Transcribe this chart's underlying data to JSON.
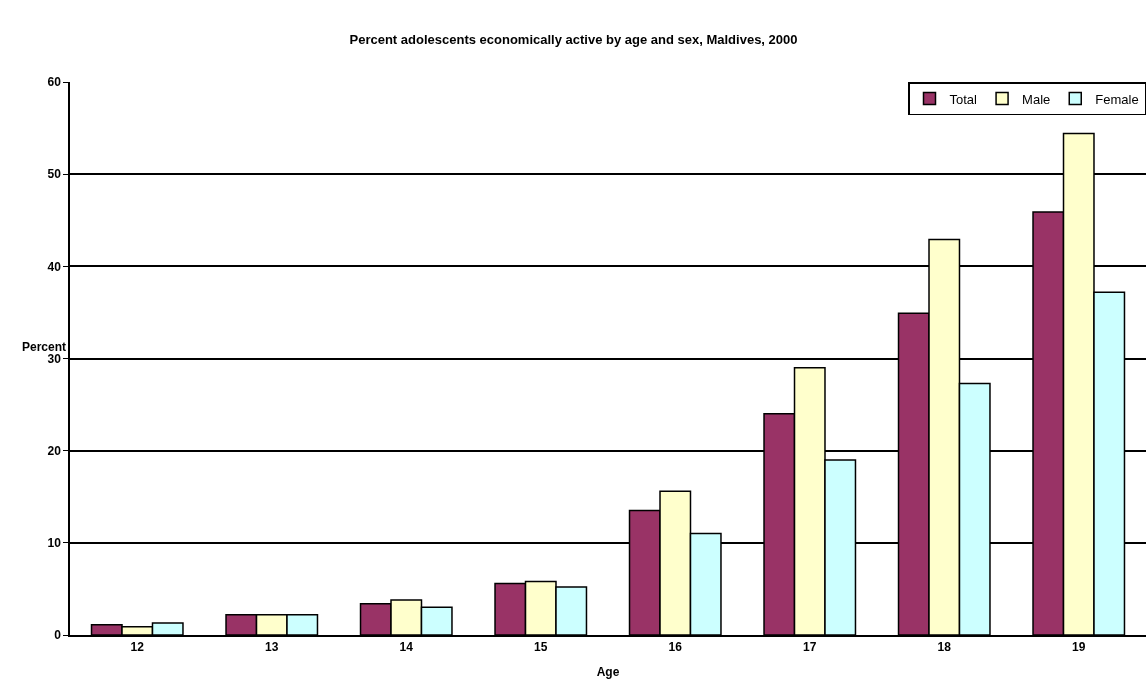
{
  "chart_data": {
    "type": "bar",
    "title": "Percent adolescents economically active by age and sex, Maldives, 2000",
    "xlabel": "Age",
    "ylabel": "Percent",
    "categories": [
      "12",
      "13",
      "14",
      "15",
      "16",
      "17",
      "18",
      "19"
    ],
    "series": [
      {
        "name": "Total",
        "color": "#993366",
        "values": [
          1.1,
          2.2,
          3.4,
          5.6,
          13.5,
          24.0,
          34.9,
          45.9
        ]
      },
      {
        "name": "Male",
        "color": "#ffffcc",
        "values": [
          0.9,
          2.2,
          3.8,
          5.8,
          15.6,
          29.0,
          42.9,
          54.4
        ]
      },
      {
        "name": "Female",
        "color": "#ccffff",
        "values": [
          1.3,
          2.2,
          3.0,
          5.2,
          11.0,
          19.0,
          27.3,
          37.2
        ]
      }
    ],
    "ylim": [
      0,
      60
    ],
    "yticks": [
      0,
      10,
      20,
      30,
      40,
      50,
      60
    ],
    "grid": "y",
    "legend": "top right"
  }
}
